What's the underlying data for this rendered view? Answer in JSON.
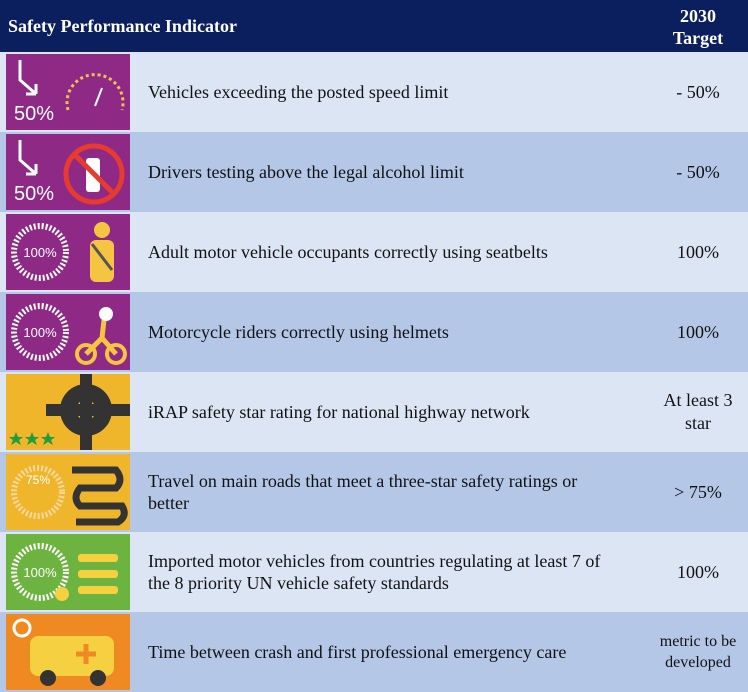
{
  "header": {
    "indicator": "Safety Performance Indicator",
    "target": "2030 Target"
  },
  "rows": [
    {
      "icon_label": "50%",
      "indicator": "Vehicles exceeding the posted speed limit",
      "target": "- 50%"
    },
    {
      "icon_label": "50%",
      "indicator": "Drivers testing above the legal alcohol limit",
      "target": "- 50%"
    },
    {
      "icon_label": "100%",
      "indicator": "Adult motor vehicle occupants correctly using seatbelts",
      "target": "100%"
    },
    {
      "icon_label": "100%",
      "indicator": "Motorcycle riders correctly using helmets",
      "target": "100%"
    },
    {
      "indicator": "iRAP safety star rating for national highway network",
      "target": "At least 3 star"
    },
    {
      "icon_label": "75%",
      "indicator": "Travel on main roads that meet a three-star safety ratings or better",
      "target": "> 75%"
    },
    {
      "icon_label": "100%",
      "indicator": "Imported motor vehicles from countries regulating at least 7 of the 8 priority UN vehicle safety standards",
      "target": "100%"
    },
    {
      "indicator": "Time between crash and first professional emergency care",
      "target": "metric to be developed"
    }
  ]
}
